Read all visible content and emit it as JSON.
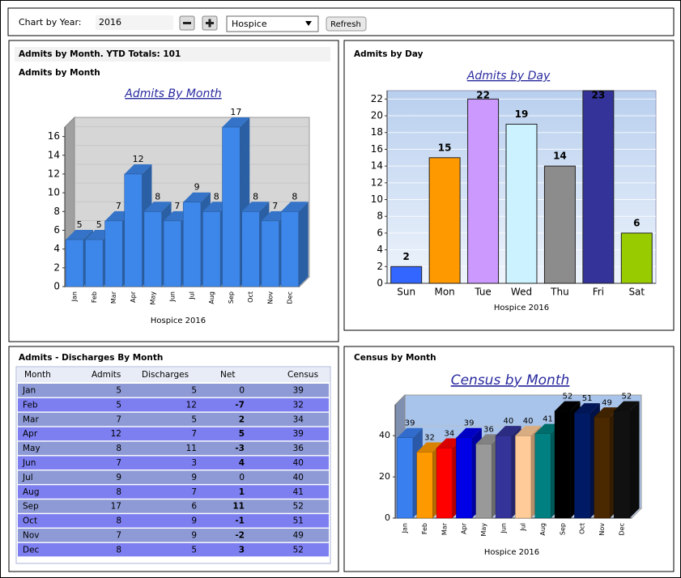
{
  "toolbar": {
    "label": "Chart by Year:",
    "year": "2016",
    "select": "Hospice",
    "refresh": "Refresh"
  },
  "admits_by_month": {
    "type": "bar3d",
    "header": "Admits by Month. YTD Totals: 101",
    "subheader": "Admits by Month",
    "title": "Admits By Month",
    "xlabel": "Hospice 2016",
    "categories": [
      "Jan",
      "Feb",
      "Mar",
      "Apr",
      "May",
      "Jun",
      "Jul",
      "Aug",
      "Sep",
      "Oct",
      "Nov",
      "Dec"
    ],
    "values": [
      5,
      5,
      7,
      12,
      8,
      7,
      9,
      8,
      17,
      8,
      7,
      8
    ],
    "color": "#3d87ea",
    "ylim": [
      0,
      17
    ],
    "yticks": [
      0,
      2,
      4,
      6,
      8,
      10,
      12,
      14,
      16
    ]
  },
  "admits_by_day": {
    "type": "bar",
    "header": "Admits by Day",
    "title": "Admits by Day",
    "xlabel": "Hospice 2016",
    "categories": [
      "Sun",
      "Mon",
      "Tue",
      "Wed",
      "Thu",
      "Fri",
      "Sat"
    ],
    "values": [
      2,
      15,
      22,
      19,
      14,
      23,
      6
    ],
    "colors": [
      "#3366ff",
      "#ff9900",
      "#cc99ff",
      "#ccf2ff",
      "#8c8c8c",
      "#333399",
      "#99cc00"
    ],
    "ylim": [
      0,
      23
    ],
    "yticks": [
      0,
      2,
      4,
      6,
      8,
      10,
      12,
      14,
      16,
      18,
      20,
      22
    ],
    "grid": true
  },
  "table": {
    "header": "Admits - Discharges By Month",
    "columns": [
      "Month",
      "Admits",
      "Discharges",
      "Net",
      "Census"
    ],
    "rows": [
      [
        "Jan",
        5,
        5,
        0,
        39
      ],
      [
        "Feb",
        5,
        12,
        -7,
        32
      ],
      [
        "Mar",
        7,
        5,
        2,
        34
      ],
      [
        "Apr",
        12,
        7,
        5,
        39
      ],
      [
        "May",
        8,
        11,
        -3,
        36
      ],
      [
        "Jun",
        7,
        3,
        4,
        40
      ],
      [
        "Jul",
        9,
        9,
        0,
        40
      ],
      [
        "Aug",
        8,
        7,
        1,
        41
      ],
      [
        "Sep",
        17,
        6,
        11,
        52
      ],
      [
        "Oct",
        8,
        9,
        -1,
        51
      ],
      [
        "Nov",
        7,
        9,
        -2,
        49
      ],
      [
        "Dec",
        8,
        5,
        3,
        52
      ]
    ]
  },
  "census_by_month": {
    "type": "bar3d",
    "header": "Census by Month",
    "title": "Census by Month",
    "xlabel": "Hospice 2016",
    "categories": [
      "Jan",
      "Feb",
      "Mar",
      "Apr",
      "May",
      "Jun",
      "Jul",
      "Aug",
      "Sep",
      "Oct",
      "Nov",
      "Dec"
    ],
    "values": [
      39,
      32,
      34,
      39,
      36,
      40,
      40,
      41,
      52,
      51,
      49,
      52
    ],
    "colors": [
      "#3a7ff0",
      "#ff9900",
      "#ff0000",
      "#0000e6",
      "#999999",
      "#333399",
      "#ffcc99",
      "#008080",
      "#000000",
      "#001a66",
      "#4a2800",
      "#111111"
    ],
    "ylim": [
      0,
      55
    ],
    "yticks": [
      0,
      20,
      40
    ]
  }
}
